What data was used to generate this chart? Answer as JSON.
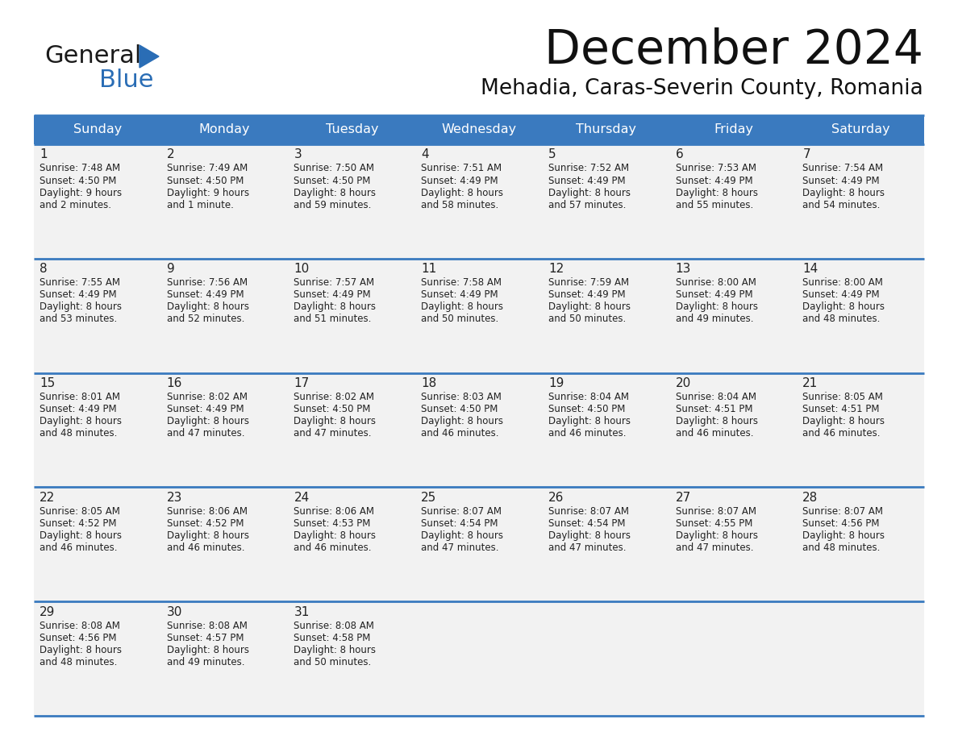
{
  "title": "December 2024",
  "subtitle": "Mehadia, Caras-Severin County, Romania",
  "days_of_week": [
    "Sunday",
    "Monday",
    "Tuesday",
    "Wednesday",
    "Thursday",
    "Friday",
    "Saturday"
  ],
  "header_bg": "#3a7abf",
  "header_text": "#ffffff",
  "row_bg": "#f2f2f2",
  "row_bg_last": "#f8f8f8",
  "cell_text": "#222222",
  "divider_color": "#3a7abf",
  "title_color": "#111111",
  "subtitle_color": "#111111",
  "logo_general_color": "#1a1a1a",
  "logo_blue_color": "#2a6db5",
  "calendar_data": [
    [
      {
        "day": 1,
        "sunrise": "7:48 AM",
        "sunset": "4:50 PM",
        "daylight": "9 hours",
        "daylight2": "and 2 minutes."
      },
      {
        "day": 2,
        "sunrise": "7:49 AM",
        "sunset": "4:50 PM",
        "daylight": "9 hours",
        "daylight2": "and 1 minute."
      },
      {
        "day": 3,
        "sunrise": "7:50 AM",
        "sunset": "4:50 PM",
        "daylight": "8 hours",
        "daylight2": "and 59 minutes."
      },
      {
        "day": 4,
        "sunrise": "7:51 AM",
        "sunset": "4:49 PM",
        "daylight": "8 hours",
        "daylight2": "and 58 minutes."
      },
      {
        "day": 5,
        "sunrise": "7:52 AM",
        "sunset": "4:49 PM",
        "daylight": "8 hours",
        "daylight2": "and 57 minutes."
      },
      {
        "day": 6,
        "sunrise": "7:53 AM",
        "sunset": "4:49 PM",
        "daylight": "8 hours",
        "daylight2": "and 55 minutes."
      },
      {
        "day": 7,
        "sunrise": "7:54 AM",
        "sunset": "4:49 PM",
        "daylight": "8 hours",
        "daylight2": "and 54 minutes."
      }
    ],
    [
      {
        "day": 8,
        "sunrise": "7:55 AM",
        "sunset": "4:49 PM",
        "daylight": "8 hours",
        "daylight2": "and 53 minutes."
      },
      {
        "day": 9,
        "sunrise": "7:56 AM",
        "sunset": "4:49 PM",
        "daylight": "8 hours",
        "daylight2": "and 52 minutes."
      },
      {
        "day": 10,
        "sunrise": "7:57 AM",
        "sunset": "4:49 PM",
        "daylight": "8 hours",
        "daylight2": "and 51 minutes."
      },
      {
        "day": 11,
        "sunrise": "7:58 AM",
        "sunset": "4:49 PM",
        "daylight": "8 hours",
        "daylight2": "and 50 minutes."
      },
      {
        "day": 12,
        "sunrise": "7:59 AM",
        "sunset": "4:49 PM",
        "daylight": "8 hours",
        "daylight2": "and 50 minutes."
      },
      {
        "day": 13,
        "sunrise": "8:00 AM",
        "sunset": "4:49 PM",
        "daylight": "8 hours",
        "daylight2": "and 49 minutes."
      },
      {
        "day": 14,
        "sunrise": "8:00 AM",
        "sunset": "4:49 PM",
        "daylight": "8 hours",
        "daylight2": "and 48 minutes."
      }
    ],
    [
      {
        "day": 15,
        "sunrise": "8:01 AM",
        "sunset": "4:49 PM",
        "daylight": "8 hours",
        "daylight2": "and 48 minutes."
      },
      {
        "day": 16,
        "sunrise": "8:02 AM",
        "sunset": "4:49 PM",
        "daylight": "8 hours",
        "daylight2": "and 47 minutes."
      },
      {
        "day": 17,
        "sunrise": "8:02 AM",
        "sunset": "4:50 PM",
        "daylight": "8 hours",
        "daylight2": "and 47 minutes."
      },
      {
        "day": 18,
        "sunrise": "8:03 AM",
        "sunset": "4:50 PM",
        "daylight": "8 hours",
        "daylight2": "and 46 minutes."
      },
      {
        "day": 19,
        "sunrise": "8:04 AM",
        "sunset": "4:50 PM",
        "daylight": "8 hours",
        "daylight2": "and 46 minutes."
      },
      {
        "day": 20,
        "sunrise": "8:04 AM",
        "sunset": "4:51 PM",
        "daylight": "8 hours",
        "daylight2": "and 46 minutes."
      },
      {
        "day": 21,
        "sunrise": "8:05 AM",
        "sunset": "4:51 PM",
        "daylight": "8 hours",
        "daylight2": "and 46 minutes."
      }
    ],
    [
      {
        "day": 22,
        "sunrise": "8:05 AM",
        "sunset": "4:52 PM",
        "daylight": "8 hours",
        "daylight2": "and 46 minutes."
      },
      {
        "day": 23,
        "sunrise": "8:06 AM",
        "sunset": "4:52 PM",
        "daylight": "8 hours",
        "daylight2": "and 46 minutes."
      },
      {
        "day": 24,
        "sunrise": "8:06 AM",
        "sunset": "4:53 PM",
        "daylight": "8 hours",
        "daylight2": "and 46 minutes."
      },
      {
        "day": 25,
        "sunrise": "8:07 AM",
        "sunset": "4:54 PM",
        "daylight": "8 hours",
        "daylight2": "and 47 minutes."
      },
      {
        "day": 26,
        "sunrise": "8:07 AM",
        "sunset": "4:54 PM",
        "daylight": "8 hours",
        "daylight2": "and 47 minutes."
      },
      {
        "day": 27,
        "sunrise": "8:07 AM",
        "sunset": "4:55 PM",
        "daylight": "8 hours",
        "daylight2": "and 47 minutes."
      },
      {
        "day": 28,
        "sunrise": "8:07 AM",
        "sunset": "4:56 PM",
        "daylight": "8 hours",
        "daylight2": "and 48 minutes."
      }
    ],
    [
      {
        "day": 29,
        "sunrise": "8:08 AM",
        "sunset": "4:56 PM",
        "daylight": "8 hours",
        "daylight2": "and 48 minutes."
      },
      {
        "day": 30,
        "sunrise": "8:08 AM",
        "sunset": "4:57 PM",
        "daylight": "8 hours",
        "daylight2": "and 49 minutes."
      },
      {
        "day": 31,
        "sunrise": "8:08 AM",
        "sunset": "4:58 PM",
        "daylight": "8 hours",
        "daylight2": "and 50 minutes."
      },
      null,
      null,
      null,
      null
    ]
  ]
}
